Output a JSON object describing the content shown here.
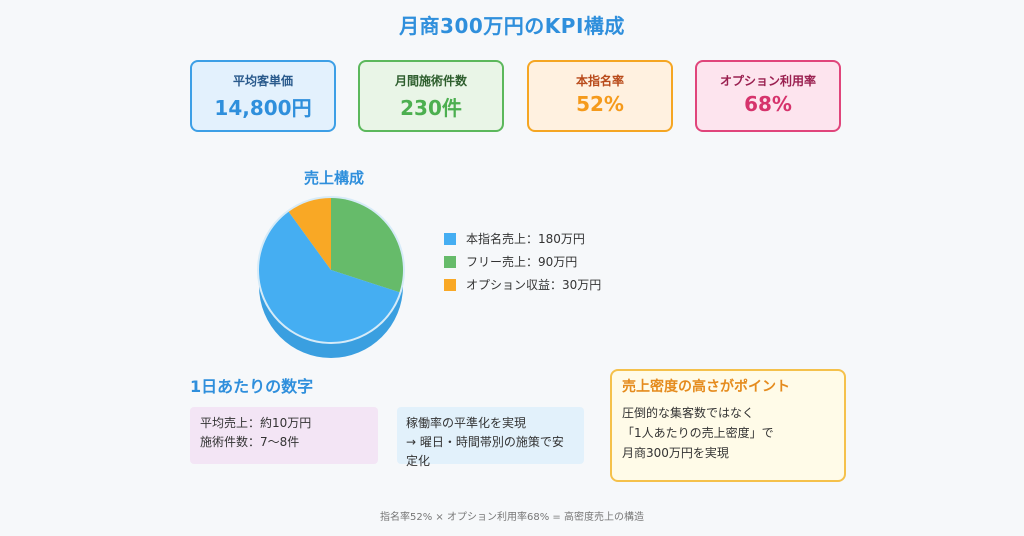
{
  "title": "月商300万円のKPI構成",
  "kpis": [
    {
      "label": "平均客単価",
      "value": "14,800円"
    },
    {
      "label": "月間施術件数",
      "value": "230件"
    },
    {
      "label": "本指名率",
      "value": "52%"
    },
    {
      "label": "オプション利用率",
      "value": "68%"
    }
  ],
  "chart_data": {
    "type": "pie",
    "title": "売上構成",
    "categories": [
      "本指名売上",
      "フリー売上",
      "オプション収益"
    ],
    "values": [
      180,
      90,
      30
    ],
    "unit": "万円",
    "legend_labels": [
      "本指名売上：180万円",
      "フリー売上：90万円",
      "オプション収益：30万円"
    ],
    "colors": [
      "#45aef2",
      "#66bb6a",
      "#f9a825"
    ],
    "legend_position": "right"
  },
  "daily": {
    "title": "1日あたりの数字",
    "avg_sales": "平均売上：約10万円",
    "treatments": "施術件数：7〜8件"
  },
  "operation": {
    "line1": "稼働率の平準化を実現",
    "line2": "→ 曜日・時間帯別の施策で安定化"
  },
  "point": {
    "title": "売上密度の高さがポイント",
    "line1": "圧倒的な集客数ではなく",
    "line2": "「1人あたりの売上密度」で",
    "line3": "月商300万円を実現"
  },
  "footer": "指名率52% × オプション利用率68% = 高密度売上の構造"
}
